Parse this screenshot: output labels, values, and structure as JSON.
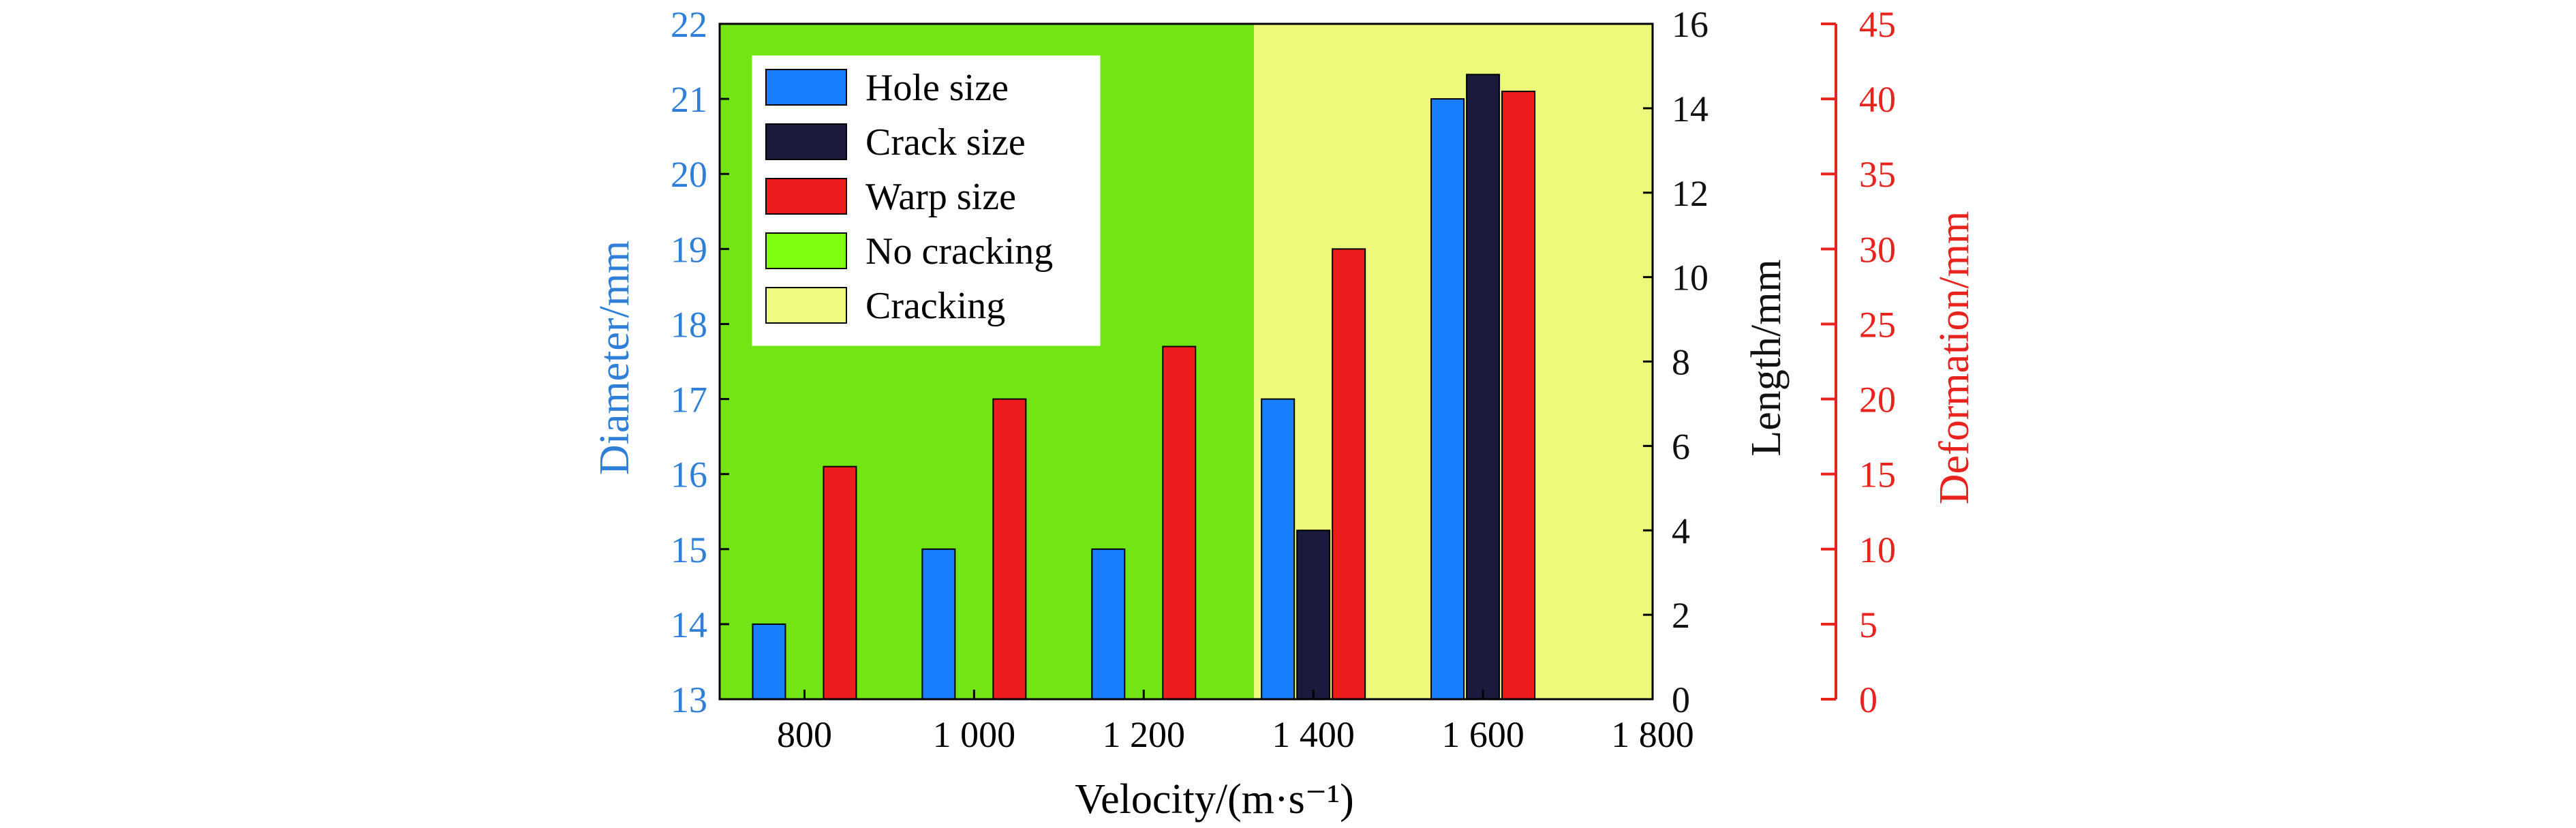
{
  "chart_data": {
    "type": "bar",
    "xlabel": "Velocity/(m·s⁻¹)",
    "x_ticks": [
      "800",
      "1 000",
      "1 200",
      "1 400",
      "1 600",
      "1 800"
    ],
    "categories": [
      "800",
      "1 000",
      "1 200",
      "1 400",
      "1 600"
    ],
    "axes": {
      "left": {
        "label": "Diameter/mm",
        "ylim": [
          13,
          22
        ],
        "ticks": [
          "13",
          "14",
          "15",
          "16",
          "17",
          "18",
          "19",
          "20",
          "21",
          "22"
        ],
        "color": "#2f7fd8"
      },
      "right1": {
        "label": "Length/mm",
        "ylim": [
          0,
          16
        ],
        "ticks": [
          "0",
          "2",
          "4",
          "6",
          "8",
          "10",
          "12",
          "14",
          "16"
        ],
        "color": "#111111"
      },
      "right2": {
        "label": "Deformation/mm",
        "ylim": [
          0,
          45
        ],
        "ticks": [
          "0",
          "5",
          "10",
          "15",
          "20",
          "25",
          "30",
          "35",
          "40",
          "45"
        ],
        "color": "#e8231e"
      }
    },
    "series": [
      {
        "name": "Hole size",
        "axis": "left",
        "color": "#1a7fff",
        "values": [
          14,
          15,
          15,
          17,
          21
        ]
      },
      {
        "name": "Crack size",
        "axis": "right1",
        "color": "#1c1a3c",
        "values": [
          0,
          0,
          0,
          4,
          14.8
        ]
      },
      {
        "name": "Warp size",
        "axis": "right2",
        "color": "#ee1c1c",
        "values": [
          15.5,
          20,
          23.5,
          30,
          40.5
        ]
      }
    ],
    "regions": [
      {
        "name": "No cracking",
        "from": 700,
        "to": 1330,
        "color": "#72e614",
        "legend_color": "#80ff10"
      },
      {
        "name": "Cracking",
        "from": 1330,
        "to": 1800,
        "color": "#ecf97a",
        "legend_color": "#eefb7e"
      }
    ],
    "legend_position": "top-left"
  }
}
